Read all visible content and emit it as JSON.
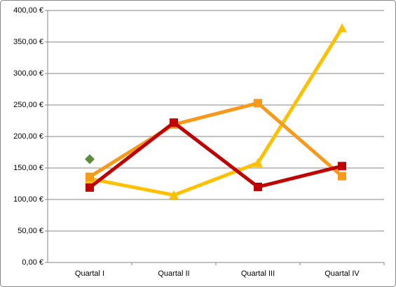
{
  "chart_data": {
    "type": "line",
    "categories": [
      "Quartal I",
      "Quartal II",
      "Quartal III",
      "Quartal IV"
    ],
    "series": [
      {
        "color": "#ffc000",
        "marker": "triangle",
        "line": true,
        "values": [
          133,
          107,
          158,
          372
        ]
      },
      {
        "color": "#f79a1c",
        "marker": "square",
        "line": true,
        "values": [
          136,
          219,
          253,
          137
        ]
      },
      {
        "color": "#c00000",
        "marker": "square",
        "line": true,
        "values": [
          119,
          222,
          120,
          153
        ]
      },
      {
        "color": "#5b8c3a",
        "marker": "diamond",
        "line": false,
        "values": [
          164,
          null,
          null,
          null
        ]
      }
    ],
    "ylim": [
      0,
      400
    ],
    "yticks": [
      {
        "value": 0,
        "label": "0,00 €"
      },
      {
        "value": 50,
        "label": "50,00 €"
      },
      {
        "value": 100,
        "label": "100,00 €"
      },
      {
        "value": 150,
        "label": "150,00 €"
      },
      {
        "value": 200,
        "label": "200,00 €"
      },
      {
        "value": 250,
        "label": "250,00 €"
      },
      {
        "value": 300,
        "label": "300,00 €"
      },
      {
        "value": 350,
        "label": "350,00 €"
      },
      {
        "value": 400,
        "label": "400,00 €"
      }
    ],
    "grid": true
  }
}
